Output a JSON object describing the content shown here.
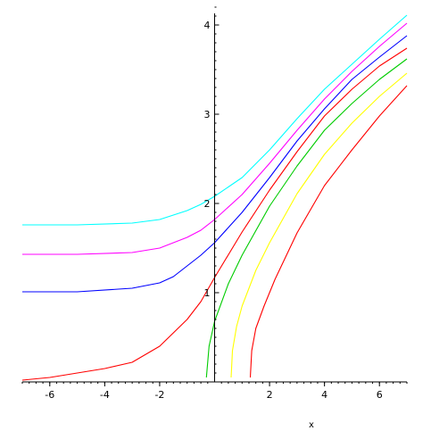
{
  "chart_data": {
    "type": "line",
    "title": "",
    "xlabel": "x",
    "ylabel": "",
    "xlim": [
      -7,
      7
    ],
    "ylim": [
      0,
      4.2
    ],
    "grid": false,
    "x_ticks": [
      -6,
      -4,
      -2,
      2,
      4,
      6
    ],
    "y_ticks": [
      1,
      2,
      3,
      4
    ],
    "x_tick_labels": [
      "-6",
      "-4",
      "-2",
      "2",
      "4",
      "6"
    ],
    "y_tick_labels": [
      "1",
      "2",
      "3",
      "4"
    ],
    "series": [
      {
        "color": "#00ffff",
        "x": [
          -7,
          -5,
          -3,
          -2,
          -1,
          -0.5,
          0,
          1,
          2,
          3,
          4,
          5,
          6,
          7
        ],
        "y": [
          1.76,
          1.76,
          1.78,
          1.82,
          1.92,
          1.99,
          2.08,
          2.29,
          2.6,
          2.95,
          3.28,
          3.56,
          3.84,
          4.11
        ]
      },
      {
        "color": "#ff00ff",
        "x": [
          -7,
          -5,
          -3,
          -2,
          -1,
          -0.5,
          0,
          1,
          2,
          3,
          4,
          5,
          6,
          7
        ],
        "y": [
          1.43,
          1.43,
          1.45,
          1.5,
          1.62,
          1.7,
          1.82,
          2.1,
          2.45,
          2.82,
          3.17,
          3.48,
          3.76,
          4.02
        ]
      },
      {
        "color": "#0000ff",
        "x": [
          -7,
          -5,
          -3,
          -2,
          -1.5,
          -1,
          -0.5,
          0,
          1,
          2,
          3,
          4,
          5,
          6,
          7
        ],
        "y": [
          1.01,
          1.01,
          1.05,
          1.11,
          1.18,
          1.3,
          1.42,
          1.56,
          1.9,
          2.29,
          2.7,
          3.06,
          3.39,
          3.64,
          3.88
        ]
      },
      {
        "color": "#ff0000",
        "x": [
          -7,
          -6,
          -5,
          -4,
          -3,
          -2,
          -1,
          -0.5,
          0,
          1,
          2,
          3,
          4,
          5,
          6,
          7
        ],
        "y": [
          0.02,
          0.05,
          0.1,
          0.15,
          0.22,
          0.4,
          0.7,
          0.9,
          1.17,
          1.68,
          2.15,
          2.58,
          2.98,
          3.28,
          3.54,
          3.74
        ]
      },
      {
        "color": "#00cc00",
        "x": [
          -0.3,
          -0.2,
          0,
          0.5,
          1,
          2,
          3,
          4,
          5,
          6,
          7
        ],
        "y": [
          0.05,
          0.4,
          0.68,
          1.1,
          1.42,
          1.97,
          2.42,
          2.82,
          3.12,
          3.39,
          3.62
        ]
      },
      {
        "color": "#ffff00",
        "x": [
          0.6,
          0.65,
          0.8,
          1,
          1.5,
          2,
          3,
          4,
          5,
          6,
          7
        ],
        "y": [
          0.05,
          0.35,
          0.62,
          0.85,
          1.25,
          1.56,
          2.11,
          2.55,
          2.9,
          3.2,
          3.46
        ]
      },
      {
        "color": "#ff0000",
        "x": [
          1.3,
          1.35,
          1.5,
          1.8,
          2.2,
          3,
          4,
          5,
          6,
          7
        ],
        "y": [
          0.05,
          0.35,
          0.6,
          0.85,
          1.15,
          1.67,
          2.2,
          2.6,
          2.98,
          3.32
        ]
      }
    ]
  }
}
